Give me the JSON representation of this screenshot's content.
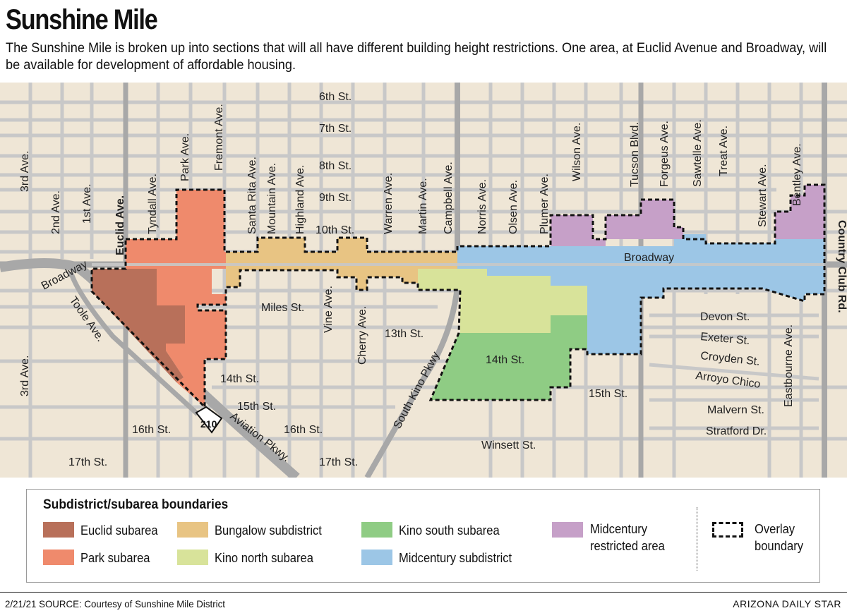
{
  "title": "Sunshine Mile",
  "subtitle": "The Sunshine Mile is broken up into sections that will all have different building height restrictions. One area, at Euclid Avenue and Broadway, will be available for development of affordable housing.",
  "colors": {
    "background": "#efe6d6",
    "road": "#c8c8c8",
    "major_road": "#a8a8a8",
    "euclid": "#b8705a",
    "park": "#ef8a6c",
    "bungalow": "#e8c483",
    "kino_north": "#d8e39a",
    "kino_south": "#8fcc84",
    "midcentury": "#9cc6e6",
    "midcentury_restricted": "#c6a0c8"
  },
  "map": {
    "streets": {
      "sixth": "6th St.",
      "seventh": "7th St.",
      "eighth": "8th St.",
      "ninth": "9th St.",
      "tenth": "10th St.",
      "miles": "Miles St.",
      "thirteenth": "13th St.",
      "fourteenth_east": "14th St.",
      "fourteenth_west": "14th St.",
      "fifteenth_west": "15th St.",
      "fifteenth_east": "15th St.",
      "sixteenth_a": "16th St.",
      "sixteenth_b": "16th St.",
      "seventeenth_a": "17th St.",
      "seventeenth_b": "17th St.",
      "winsett": "Winsett St.",
      "devon": "Devon St.",
      "exeter": "Exeter St.",
      "croyden": "Croyden St.",
      "arroyo": "Arroyo Chico",
      "malvern": "Malvern St.",
      "stratford": "Stratford Dr.",
      "broadway_west": "Broadway",
      "broadway_east": "Broadway",
      "toole": "Toole Ave.",
      "aviation": "Aviation Pkwy.",
      "kino": "South Kino Pkwy",
      "route": "210"
    },
    "avenues": {
      "third_north": "3rd Ave.",
      "second": "2nd Ave.",
      "first": "1st Ave.",
      "euclid": "Euclid Ave.",
      "tyndall": "Tyndall Ave.",
      "park": "Park Ave.",
      "fremont": "Fremont Ave.",
      "santa_rita": "Santa Rita Ave.",
      "mountain": "Mountain Ave.",
      "highland": "Highland Ave.",
      "warren": "Warren Ave.",
      "martin": "Martin Ave.",
      "campbell": "Campbell Ave.",
      "norris": "Norris Ave.",
      "olsen": "Olsen Ave.",
      "plumer": "Plumer Ave.",
      "wilson": "Wilson Ave.",
      "tucson": "Tucson Blvd.",
      "forgeus": "Forgeus Ave.",
      "sawtelle": "Sawtelle Ave.",
      "treat": "Treat Ave.",
      "stewart": "Stewart Ave.",
      "bentley": "Bentley Ave.",
      "country_club": "Country Club Rd.",
      "third_south": "3rd Ave.",
      "vine": "Vine Ave.",
      "cherry": "Cherry Ave.",
      "eastbourne": "Eastbourne Ave."
    }
  },
  "legend": {
    "title": "Subdistrict/subarea boundaries",
    "items": {
      "euclid": "Euclid subarea",
      "park": "Park subarea",
      "bungalow": "Bungalow subdistrict",
      "kino_north": "Kino north subarea",
      "kino_south": "Kino south subarea",
      "midcentury": "Midcentury subdistrict",
      "restricted_line1": "Midcentury",
      "restricted_line2": "restricted area",
      "overlay_line1": "Overlay",
      "overlay_line2": "boundary"
    }
  },
  "footer": {
    "date_source": "2/21/21  SOURCE: Courtesy of Sunshine Mile District",
    "publisher": "ARIZONA DAILY STAR"
  }
}
